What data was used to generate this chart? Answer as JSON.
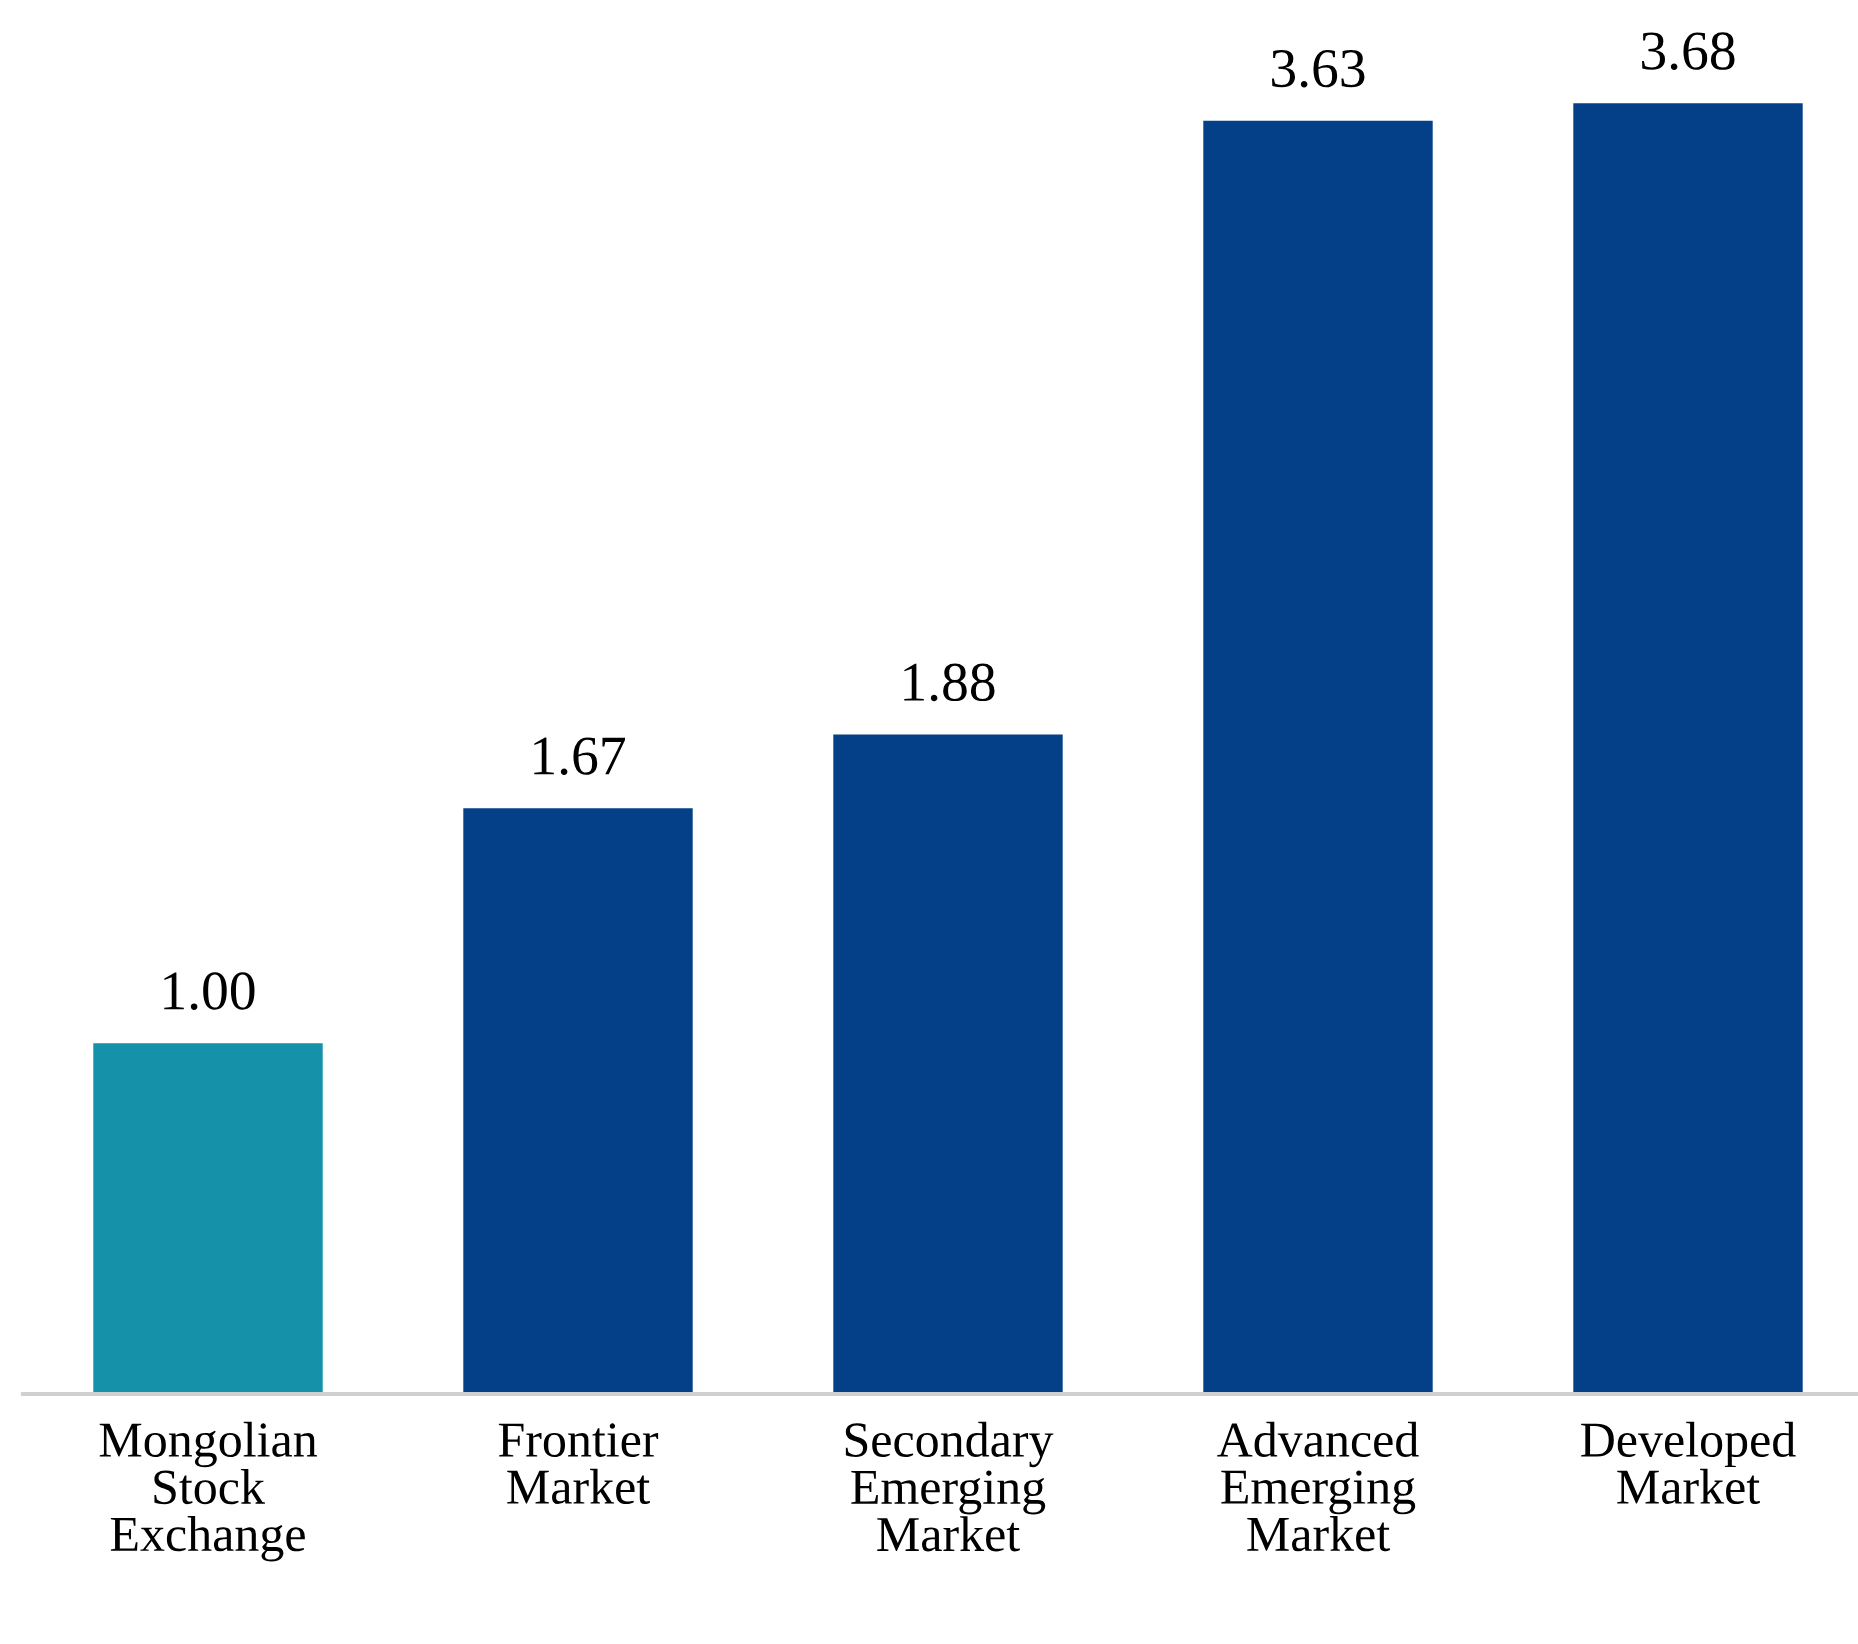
{
  "chart_data": {
    "type": "bar",
    "categories": [
      "Mongolian\nStock\nExchange",
      "Frontier\nMarket",
      "Secondary\nEmerging\nMarket",
      "Advanced\nEmerging\nMarket",
      "Developed\nMarket"
    ],
    "values": [
      1.0,
      1.67,
      1.88,
      3.63,
      3.68
    ],
    "colors": [
      "#1591a9",
      "#034088",
      "#034088",
      "#034088",
      "#034088"
    ],
    "value_labels": [
      "1.00",
      "1.67",
      "1.88",
      "3.63",
      "3.68"
    ],
    "data_labels": false
  }
}
